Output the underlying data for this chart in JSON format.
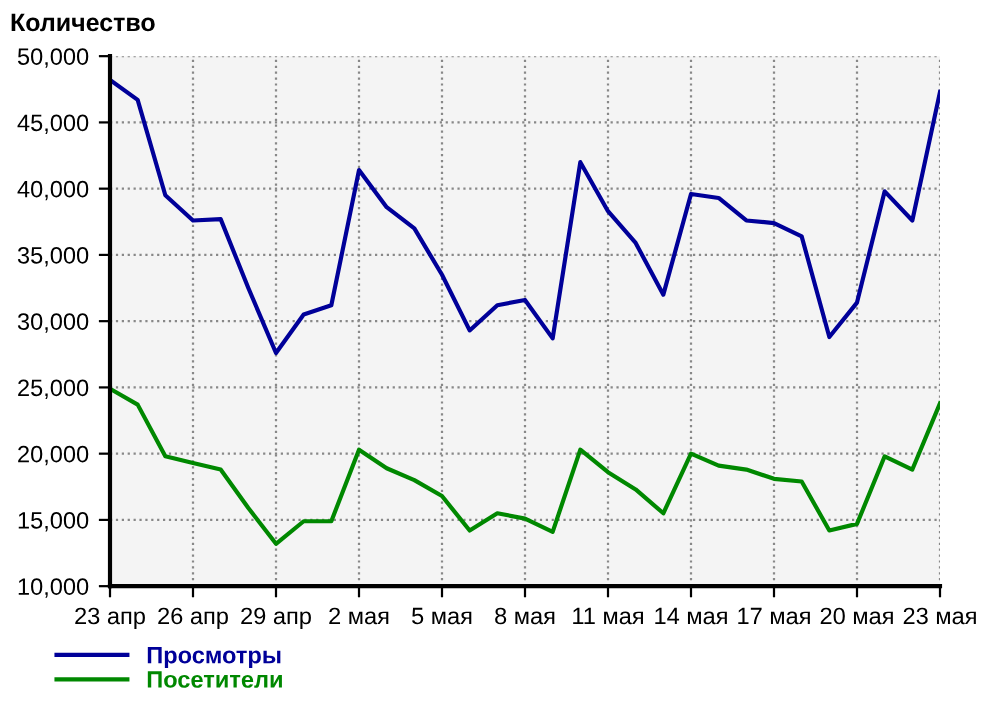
{
  "chart_data": {
    "type": "line",
    "ylabel": "Количество",
    "categories": [
      "23 апр",
      null,
      null,
      "26 апр",
      null,
      null,
      "29 апр",
      null,
      null,
      "2 мая",
      null,
      null,
      "5 мая",
      null,
      null,
      "8 мая",
      null,
      null,
      "11 мая",
      null,
      null,
      "14 мая",
      null,
      null,
      "17 мая",
      null,
      null,
      "20 мая",
      null,
      null,
      "23 мая"
    ],
    "series": [
      {
        "name": "Просмотры",
        "color": "#000099",
        "values": [
          48200,
          46700,
          39500,
          37600,
          37700,
          32500,
          27600,
          30500,
          31200,
          41400,
          38600,
          37000,
          33500,
          29300,
          31200,
          31600,
          28700,
          42000,
          38300,
          35900,
          32000,
          39600,
          39300,
          37600,
          37400,
          36400,
          28800,
          31400,
          39800,
          37600,
          47300
        ]
      },
      {
        "name": "Посетители",
        "color": "#008800",
        "values": [
          24900,
          23700,
          19800,
          19300,
          18800,
          15900,
          13200,
          14900,
          14900,
          20300,
          18900,
          18000,
          16800,
          14200,
          15500,
          15100,
          14100,
          20300,
          18600,
          17300,
          15500,
          20000,
          19100,
          18800,
          18100,
          17900,
          14200,
          14700,
          19800,
          18800,
          23800
        ]
      }
    ],
    "ylim": [
      10000,
      50000
    ],
    "yticks": [
      {
        "value": 10000,
        "label": "10,000"
      },
      {
        "value": 15000,
        "label": "15,000"
      },
      {
        "value": 20000,
        "label": "20,000"
      },
      {
        "value": 25000,
        "label": "25,000"
      },
      {
        "value": 30000,
        "label": "30,000"
      },
      {
        "value": 35000,
        "label": "35,000"
      },
      {
        "value": 40000,
        "label": "40,000"
      },
      {
        "value": 45000,
        "label": "45,000"
      },
      {
        "value": 50000,
        "label": "50,000"
      }
    ],
    "grid": true,
    "legend": "bottom left",
    "marker": "none",
    "line_style": "solid"
  }
}
